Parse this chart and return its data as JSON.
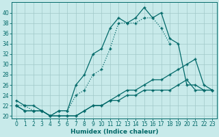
{
  "xlabel": "Humidex (Indice chaleur)",
  "background_color": "#c8eaea",
  "grid_color": "#a0c8c8",
  "line_color": "#006868",
  "x_values": [
    0,
    1,
    2,
    3,
    4,
    5,
    6,
    7,
    8,
    9,
    10,
    11,
    12,
    13,
    14,
    15,
    16,
    17,
    18,
    19,
    20,
    21,
    22,
    23
  ],
  "line1": [
    23,
    22,
    22,
    21,
    20,
    21,
    21,
    26,
    28,
    32,
    33,
    37,
    39,
    38,
    39,
    41,
    39,
    40,
    35,
    34,
    26,
    26,
    25,
    25
  ],
  "line2": [
    22,
    22,
    21,
    21,
    20,
    21,
    21,
    24,
    25,
    28,
    29,
    33,
    38,
    38,
    38,
    39,
    39,
    37,
    34,
    null,
    null,
    null,
    null,
    null
  ],
  "line3": [
    22,
    21,
    21,
    21,
    20,
    20,
    20,
    20,
    21,
    22,
    22,
    23,
    24,
    25,
    25,
    26,
    27,
    27,
    28,
    29,
    30,
    31,
    26,
    25
  ],
  "line4": [
    22,
    21,
    21,
    21,
    20,
    20,
    20,
    20,
    21,
    22,
    22,
    23,
    23,
    24,
    24,
    25,
    25,
    25,
    25,
    26,
    27,
    25,
    25,
    25
  ],
  "ylim": [
    19.5,
    42
  ],
  "xlim": [
    -0.5,
    23.5
  ],
  "yticks": [
    20,
    22,
    24,
    26,
    28,
    30,
    32,
    34,
    36,
    38,
    40
  ],
  "xticks": [
    0,
    1,
    2,
    3,
    4,
    5,
    6,
    7,
    8,
    9,
    10,
    11,
    12,
    13,
    14,
    15,
    16,
    17,
    18,
    19,
    20,
    21,
    22,
    23
  ]
}
